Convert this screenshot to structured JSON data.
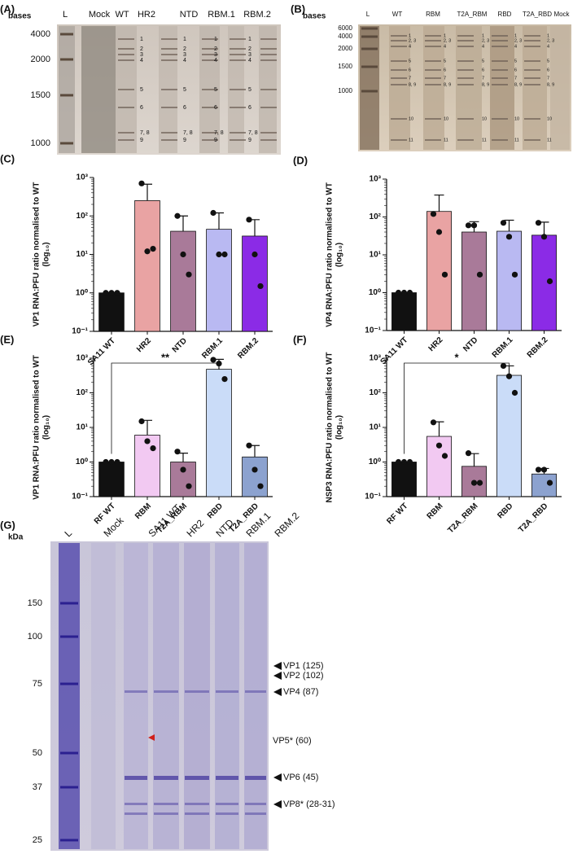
{
  "gels": [
    {
      "panel": "(A)",
      "unit": "bases",
      "ticks": [
        "4000",
        "2000",
        "1500",
        "1000"
      ],
      "lanes": [
        "L",
        "Mock",
        "WT",
        "HR2",
        "NTD",
        "RBM.1",
        "RBM.2"
      ],
      "bands": [
        "1",
        "2",
        "3",
        "4",
        "5",
        "6",
        "7, 8",
        "9"
      ]
    },
    {
      "panel": "(B)",
      "unit": "bases",
      "ticks": [
        "6000",
        "4000",
        "2000",
        "1500",
        "1000"
      ],
      "lanes": [
        "L",
        "WT",
        "RBM",
        "T2A_RBM",
        "RBD",
        "T2A_RBD",
        "Mock"
      ],
      "bands": [
        "1",
        "2, 3",
        "4",
        "5",
        "6",
        "7",
        "8, 9",
        "10",
        "11"
      ]
    },
    {
      "panel": "(G)",
      "unit": "kDa",
      "ticks": [
        "150",
        "100",
        "75",
        "50",
        "37",
        "25"
      ],
      "lanes": [
        "L",
        "Mock",
        "SA11 WT",
        "HR2",
        "NTD",
        "RBM.1",
        "RBM.2"
      ],
      "proteins": [
        "VP1 (125)",
        "VP2 (102)",
        "VP4 (87)",
        "VP5* (60)",
        "VP6 (45)",
        "VP8* (28-31)"
      ]
    }
  ],
  "chart_data": [
    {
      "type": "bar",
      "panel": "(C)",
      "ylabel": "VP1 RNA:PFU ratio normalised to WT",
      "ylabel2": "(log₁₀)",
      "log": true,
      "ylim": [
        0.1,
        1000
      ],
      "yticks": [
        {
          "value": 0.1,
          "label": "10⁻¹"
        },
        {
          "value": 1,
          "label": "10⁰"
        },
        {
          "value": 10,
          "label": "10¹"
        },
        {
          "value": 100,
          "label": "10²"
        },
        {
          "value": 1000,
          "label": "10³"
        }
      ],
      "categories": [
        "SA11 WT",
        "HR2",
        "NTD",
        "RBM.1",
        "RBM.2"
      ],
      "values": [
        1,
        250,
        40,
        45,
        30
      ],
      "errors": [
        0,
        420,
        60,
        75,
        50
      ],
      "points": [
        [
          1,
          1,
          1
        ],
        [
          700,
          12,
          14
        ],
        [
          100,
          10,
          3
        ],
        [
          120,
          10,
          10
        ],
        [
          80,
          10,
          1.5
        ]
      ],
      "colors": [
        "#111111",
        "#e9a3a3",
        "#a97a99",
        "#b9b9f2",
        "#8b2be6"
      ]
    },
    {
      "type": "bar",
      "panel": "(D)",
      "ylabel": "VP4 RNA:PFU ratio normalised to WT",
      "ylabel2": "(log₁₀)",
      "log": true,
      "ylim": [
        0.1,
        1000
      ],
      "yticks": [
        {
          "value": 0.1,
          "label": "10⁻¹"
        },
        {
          "value": 1,
          "label": "10⁰"
        },
        {
          "value": 10,
          "label": "10¹"
        },
        {
          "value": 100,
          "label": "10²"
        },
        {
          "value": 1000,
          "label": "10³"
        }
      ],
      "categories": [
        "SA11 WT",
        "HR2",
        "NTD",
        "RBM.1",
        "RBM.2"
      ],
      "values": [
        1,
        140,
        40,
        42,
        33
      ],
      "errors": [
        0,
        240,
        35,
        40,
        40
      ],
      "points": [
        [
          1,
          1,
          1
        ],
        [
          120,
          40,
          3
        ],
        [
          60,
          60,
          3
        ],
        [
          70,
          30,
          3
        ],
        [
          70,
          30,
          2
        ]
      ],
      "colors": [
        "#111111",
        "#e9a3a3",
        "#a97a99",
        "#b9b9f2",
        "#8b2be6"
      ]
    },
    {
      "type": "bar",
      "panel": "(E)",
      "ylabel": "VP1 RNA:PFU ratio normalised to WT",
      "ylabel2": "(log₁₀)",
      "log": true,
      "ylim": [
        0.1,
        1000
      ],
      "annotation": "**",
      "yticks": [
        {
          "value": 0.1,
          "label": "10⁻¹"
        },
        {
          "value": 1,
          "label": "10⁰"
        },
        {
          "value": 10,
          "label": "10¹"
        },
        {
          "value": 100,
          "label": "10²"
        },
        {
          "value": 1000,
          "label": "10³"
        }
      ],
      "categories": [
        "RF WT",
        "RBM",
        "T2A_RBM",
        "RBD",
        "T2A_RBD"
      ],
      "values": [
        1,
        6,
        1,
        480,
        1.4
      ],
      "errors": [
        0,
        10,
        0.8,
        450,
        1.6
      ],
      "points": [
        [
          1,
          1,
          1
        ],
        [
          15,
          4,
          2.5
        ],
        [
          2,
          0.6,
          0.2
        ],
        [
          900,
          700,
          250
        ],
        [
          3,
          0.6,
          0.2
        ]
      ],
      "colors": [
        "#111111",
        "#f2c9f2",
        "#a97a99",
        "#cadcf8",
        "#8ca2cf"
      ]
    },
    {
      "type": "bar",
      "panel": "(F)",
      "ylabel": "NSP3 RNA:PFU ratio normalised to WT",
      "ylabel2": "(log₁₀)",
      "log": true,
      "ylim": [
        0.1,
        1000
      ],
      "annotation": "*",
      "yticks": [
        {
          "value": 0.1,
          "label": "10⁻¹"
        },
        {
          "value": 1,
          "label": "10⁰"
        },
        {
          "value": 10,
          "label": "10¹"
        },
        {
          "value": 100,
          "label": "10²"
        },
        {
          "value": 1000,
          "label": "10³"
        }
      ],
      "categories": [
        "RF WT",
        "RBM",
        "T2A_RBM",
        "RBD",
        "T2A_RBD"
      ],
      "values": [
        1,
        5.5,
        0.75,
        320,
        0.45
      ],
      "errors": [
        0,
        9,
        1,
        280,
        0.2
      ],
      "points": [
        [
          1,
          1,
          1
        ],
        [
          14,
          3,
          1.5
        ],
        [
          1.8,
          0.25,
          0.25
        ],
        [
          600,
          300,
          100
        ],
        [
          0.6,
          0.6,
          0.25
        ]
      ],
      "colors": [
        "#111111",
        "#f2c9f2",
        "#a97a99",
        "#cadcf8",
        "#8ca2cf"
      ]
    }
  ]
}
